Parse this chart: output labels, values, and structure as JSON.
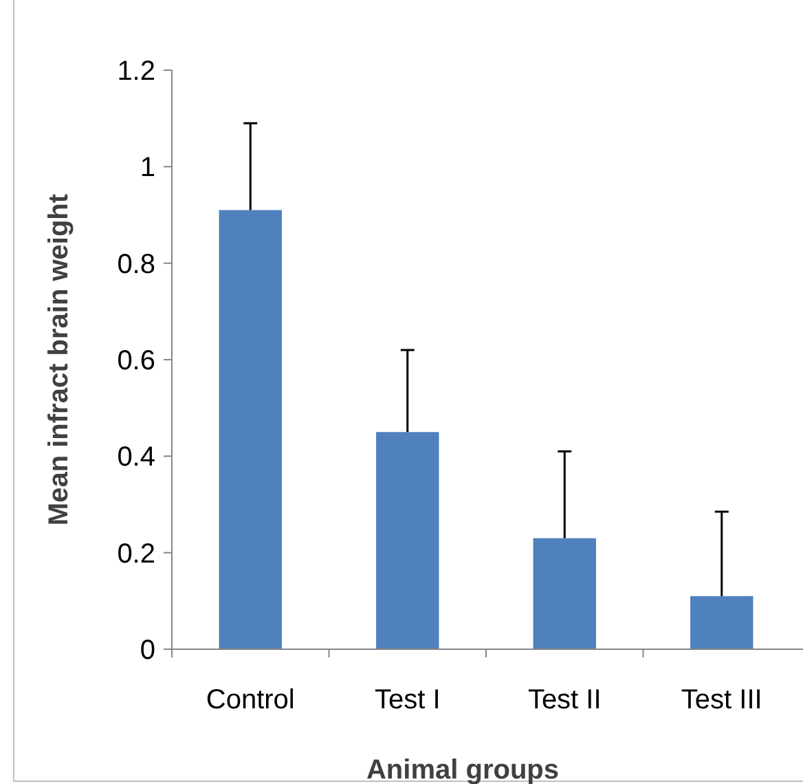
{
  "chart_data": {
    "type": "bar",
    "xlabel": "Animal groups",
    "ylabel": "Mean infract brain weight",
    "categories": [
      "Control",
      "Test I",
      "Test II",
      "Test III"
    ],
    "values": [
      0.91,
      0.45,
      0.23,
      0.11
    ],
    "color": "#4f81bd",
    "errors": [
      [
        0.91,
        1.09
      ],
      [
        0.45,
        0.62
      ],
      [
        0.23,
        0.41
      ],
      [
        0.11,
        0.285
      ]
    ],
    "ylim": [
      0,
      1.2
    ],
    "yticks": [
      0,
      0.2,
      0.4,
      0.6,
      0.8,
      1,
      1.2
    ],
    "grid": false
  }
}
